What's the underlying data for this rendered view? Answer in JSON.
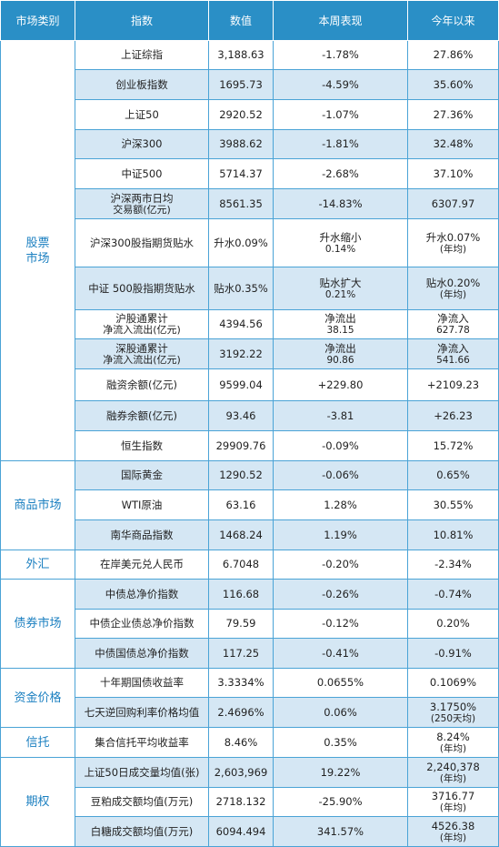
{
  "headers": [
    "市场类别",
    "指数",
    "数值",
    "本周表现",
    "今年以来"
  ],
  "groups": [
    {
      "category": [
        "股票",
        "市场"
      ],
      "rows": [
        {
          "name": [
            "上证综指"
          ],
          "value": "3,188.63",
          "week": [
            "-1.78%"
          ],
          "ytd": [
            "27.86%"
          ],
          "h": 32
        },
        {
          "name": [
            "创业板指数"
          ],
          "value": "1695.73",
          "week": [
            "-4.59%"
          ],
          "ytd": [
            "35.60%"
          ],
          "h": 33
        },
        {
          "name": [
            "上证50"
          ],
          "value": "2920.52",
          "week": [
            "-1.07%"
          ],
          "ytd": [
            "27.36%"
          ],
          "h": 33
        },
        {
          "name": [
            "沪深300"
          ],
          "value": "3988.62",
          "week": [
            "-1.81%"
          ],
          "ytd": [
            "32.48%"
          ],
          "h": 32
        },
        {
          "name": [
            "中证500"
          ],
          "value": "5714.37",
          "week": [
            "-2.68%"
          ],
          "ytd": [
            "37.10%"
          ],
          "h": 33
        },
        {
          "name": [
            "沪深两市日均",
            "交易额(亿元)"
          ],
          "value": "8561.35",
          "week": [
            "-14.83%"
          ],
          "ytd": [
            "6307.97"
          ],
          "h": 33
        },
        {
          "name": [
            "沪深300股指期货贴水"
          ],
          "value": "升水0.09%",
          "week": [
            "升水缩小",
            "0.14%"
          ],
          "ytd": [
            "升水0.07%",
            "(年均)"
          ],
          "h": 53
        },
        {
          "name": [
            "中证 500股指期货贴水"
          ],
          "value": "贴水0.35%",
          "week": [
            "贴水扩大",
            "0.21%"
          ],
          "ytd": [
            "贴水0.20%",
            "(年均)"
          ],
          "h": 47
        },
        {
          "name": [
            "沪股通累计",
            "净流入流出(亿元)"
          ],
          "value": "4394.56",
          "week": [
            "净流出",
            "38.15"
          ],
          "ytd": [
            "净流入",
            "627.78"
          ],
          "h": 32
        },
        {
          "name": [
            "深股通累计",
            "净流入流出(亿元)"
          ],
          "value": "3192.22",
          "week": [
            "净流出",
            "90.86"
          ],
          "ytd": [
            "净流入",
            "541.66"
          ],
          "h": 33
        },
        {
          "name": [
            "融资余额(亿元)"
          ],
          "value": "9599.04",
          "week": [
            "+229.80"
          ],
          "ytd": [
            "+2109.23"
          ],
          "h": 35
        },
        {
          "name": [
            "融券余额(亿元)"
          ],
          "value": "93.46",
          "week": [
            "-3.81"
          ],
          "ytd": [
            "+26.23"
          ],
          "h": 33
        },
        {
          "name": [
            "恒生指数"
          ],
          "value": "29909.76",
          "week": [
            "-0.09%"
          ],
          "ytd": [
            "15.72%"
          ],
          "h": 33
        }
      ]
    },
    {
      "category": [
        "商品市场"
      ],
      "rows": [
        {
          "name": [
            "国际黄金"
          ],
          "value": "1290.52",
          "week": [
            "-0.06%"
          ],
          "ytd": [
            "0.65%"
          ],
          "h": 32
        },
        {
          "name": [
            "WTI原油"
          ],
          "value": "63.16",
          "week": [
            "1.28%"
          ],
          "ytd": [
            "30.55%"
          ],
          "h": 33
        },
        {
          "name": [
            "南华商品指数"
          ],
          "value": "1468.24",
          "week": [
            "1.19%"
          ],
          "ytd": [
            "10.81%"
          ],
          "h": 33
        }
      ]
    },
    {
      "category": [
        "外汇"
      ],
      "rows": [
        {
          "name": [
            "在岸美元兑人民币"
          ],
          "value": "6.7048",
          "week": [
            "-0.20%"
          ],
          "ytd": [
            "-2.34%"
          ],
          "h": 32
        }
      ]
    },
    {
      "category": [
        "债券市场"
      ],
      "rows": [
        {
          "name": [
            "中债总净价指数"
          ],
          "value": "116.68",
          "week": [
            "-0.26%"
          ],
          "ytd": [
            "-0.74%"
          ],
          "h": 33
        },
        {
          "name": [
            "中债企业债总净价指数"
          ],
          "value": "79.59",
          "week": [
            "-0.12%"
          ],
          "ytd": [
            "0.20%"
          ],
          "h": 32
        },
        {
          "name": [
            "中债国债总净价指数"
          ],
          "value": "117.25",
          "week": [
            "-0.41%"
          ],
          "ytd": [
            "-0.91%"
          ],
          "h": 33
        }
      ]
    },
    {
      "category": [
        "资金价格"
      ],
      "rows": [
        {
          "name": [
            "十年期国债收益率"
          ],
          "value": "3.3334%",
          "week": [
            "0.0655%"
          ],
          "ytd": [
            "0.1069%"
          ],
          "h": 32
        },
        {
          "name": [
            "七天逆回购利率价格均值"
          ],
          "value": "2.4696%",
          "week": [
            "0.06%"
          ],
          "ytd": [
            "3.1750%",
            "(250天均)"
          ],
          "h": 33
        }
      ]
    },
    {
      "category": [
        "信托"
      ],
      "rows": [
        {
          "name": [
            "集合信托平均收益率"
          ],
          "value": "8.46%",
          "week": [
            "0.35%"
          ],
          "ytd": [
            "8.24%",
            "(年均)"
          ],
          "h": 33
        }
      ]
    },
    {
      "category": [
        "期权"
      ],
      "rows": [
        {
          "name": [
            "上证50日成交量均值(张)"
          ],
          "value": "2,603,969",
          "week": [
            "19.22%"
          ],
          "ytd": [
            "2,240,378",
            "(年均)"
          ],
          "h": 33
        },
        {
          "name": [
            "豆粕成交额均值(万元)"
          ],
          "value": "2718.132",
          "week": [
            "-25.90%"
          ],
          "ytd": [
            "3716.77",
            "(年均)"
          ],
          "h": 32
        },
        {
          "name": [
            "白糖成交额均值(万元)"
          ],
          "value": "6094.494",
          "week": [
            "341.57%"
          ],
          "ytd": [
            "4526.38",
            "(年均)"
          ],
          "h": 33
        }
      ]
    }
  ]
}
